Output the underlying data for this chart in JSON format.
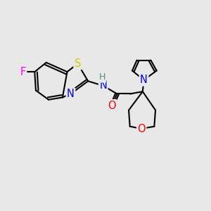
{
  "bg_color": "#e8e8e8",
  "bond_color": "#000000",
  "atom_colors": {
    "F": "#ff00ff",
    "S": "#cccc00",
    "N": "#0000ff",
    "O": "#ff0000",
    "H": "#4a9090",
    "C": "#000000"
  },
  "bond_width": 1.5,
  "font_size": 10.5
}
